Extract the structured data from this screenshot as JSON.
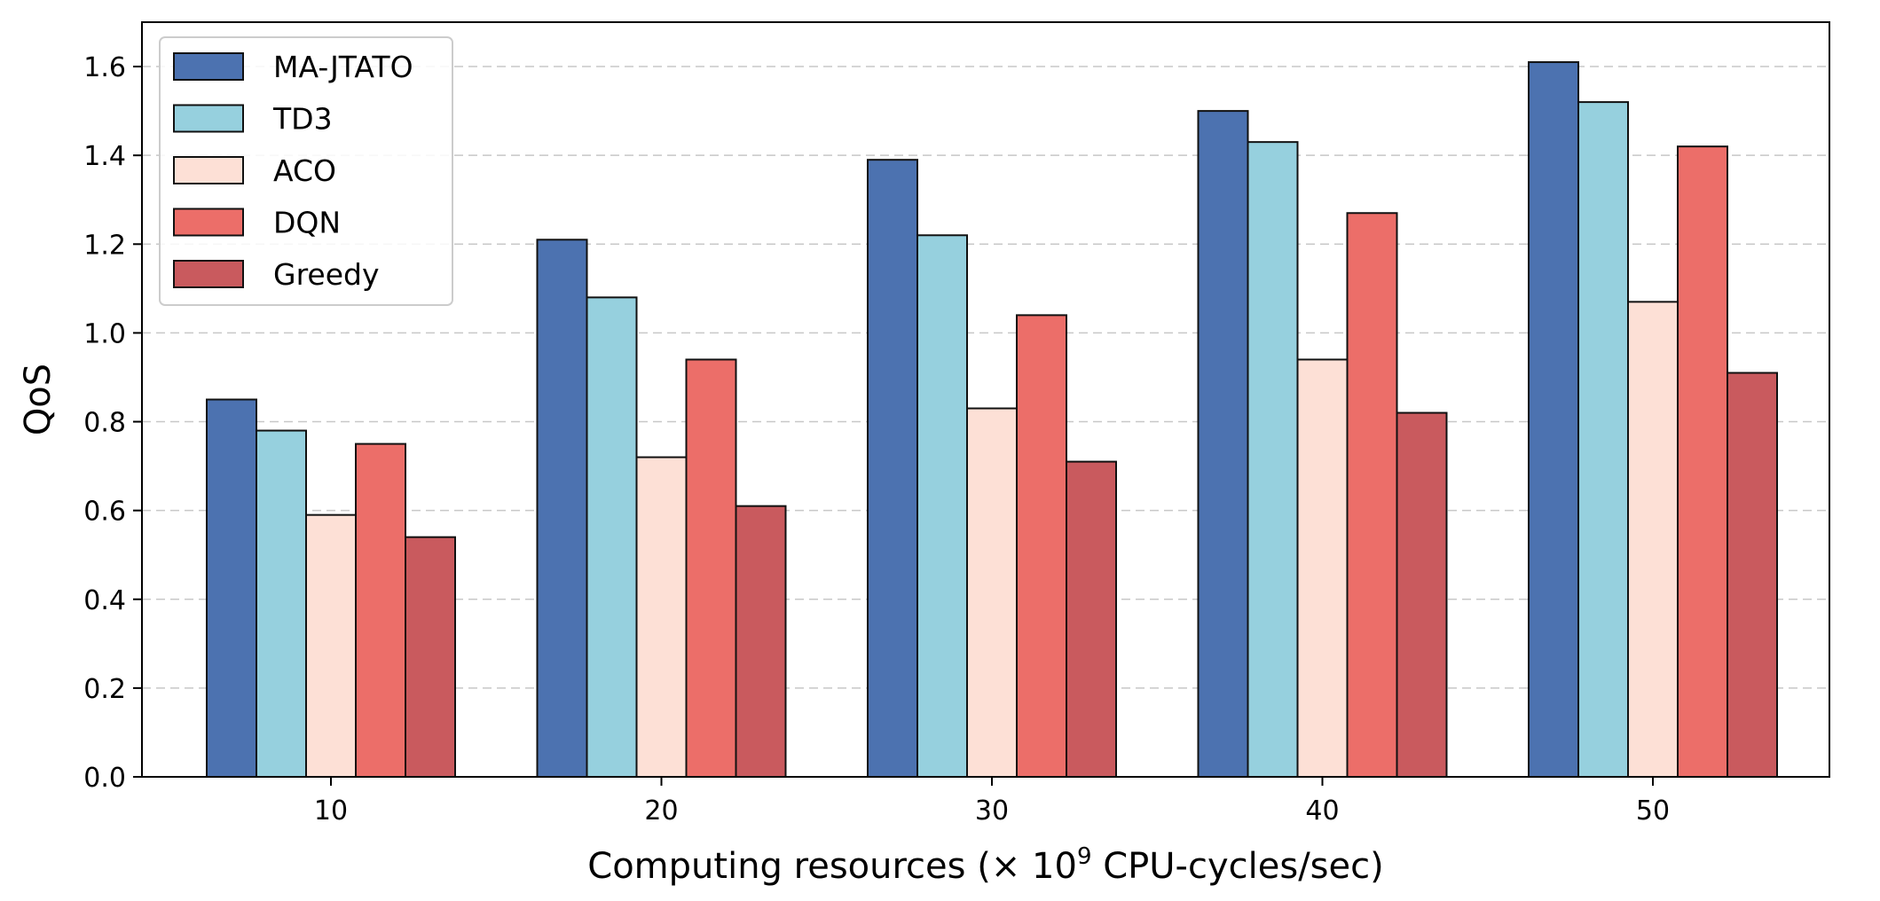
{
  "chart_data": {
    "type": "bar",
    "xlabel": "Computing resources (× 10^9 CPU-cycles/sec)",
    "xlabel_parts": {
      "prefix": "Computing resources (× 10",
      "exponent": "9",
      "suffix": " CPU-cycles/sec)"
    },
    "ylabel": "QoS",
    "ylim": [
      0,
      1.7
    ],
    "yticks": [
      "0.0",
      "0.2",
      "0.4",
      "0.6",
      "0.8",
      "1.0",
      "1.2",
      "1.4",
      "1.6"
    ],
    "grid": "horizontal-dashed",
    "legend_position": "top-left",
    "categories": [
      "10",
      "20",
      "30",
      "40",
      "50"
    ],
    "series": [
      {
        "name": "MA-JTATO",
        "color": "#4c72b0",
        "values": [
          0.85,
          1.21,
          1.39,
          1.5,
          1.61
        ]
      },
      {
        "name": "TD3",
        "color": "#96d0de",
        "values": [
          0.78,
          1.08,
          1.22,
          1.43,
          1.52
        ]
      },
      {
        "name": "ACO",
        "color": "#fde0d6",
        "values": [
          0.59,
          0.72,
          0.83,
          0.94,
          1.07
        ]
      },
      {
        "name": "DQN",
        "color": "#ec6e69",
        "values": [
          0.75,
          0.94,
          1.04,
          1.27,
          1.42
        ]
      },
      {
        "name": "Greedy",
        "color": "#c95a5e",
        "values": [
          0.54,
          0.61,
          0.71,
          0.82,
          0.91
        ]
      }
    ]
  }
}
